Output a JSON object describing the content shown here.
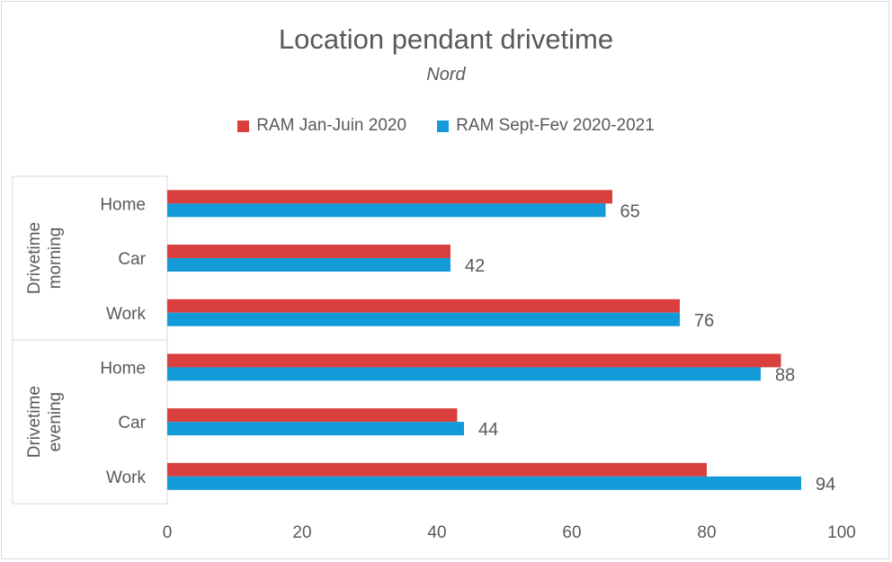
{
  "chart_data": {
    "type": "bar",
    "orientation": "horizontal",
    "title": "Location pendant drivetime",
    "subtitle": "Nord",
    "legend_position": "top",
    "xlim": [
      0,
      100
    ],
    "x_ticks": [
      0,
      20,
      40,
      60,
      80,
      100
    ],
    "grid": false,
    "groups": [
      {
        "label": [
          "Drivetime",
          "morning"
        ],
        "categories": [
          "Home",
          "Car",
          "Work"
        ]
      },
      {
        "label": [
          "Drivetime",
          "evening"
        ],
        "categories": [
          "Home",
          "Car",
          "Work"
        ]
      }
    ],
    "series": [
      {
        "name": "RAM Jan-Juin 2020",
        "color": "#d9403d",
        "values": [
          66,
          42,
          76,
          91,
          43,
          80
        ]
      },
      {
        "name": "RAM Sept-Fev 2020-2021",
        "color": "#129ad9",
        "values": [
          65,
          42,
          76,
          88,
          44,
          94
        ]
      }
    ],
    "data_labels": [
      "65",
      "42",
      "76",
      "88",
      "44",
      "94"
    ]
  }
}
